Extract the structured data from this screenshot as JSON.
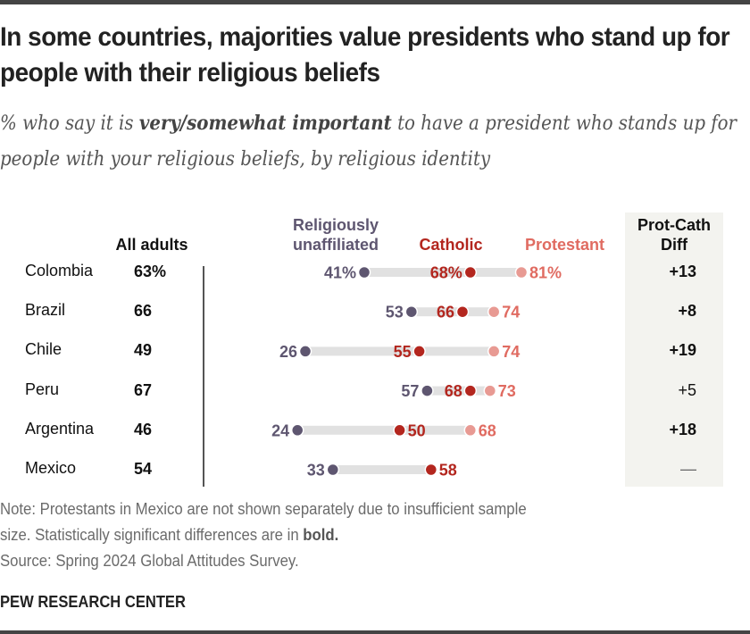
{
  "title": "In some countries, majorities value presidents who stand up for people with their religious beliefs",
  "subtitle": {
    "pre": "% who say it is ",
    "bold": "very/somewhat important",
    "post": " to have a president who stands up for people with your religious beliefs, by religious identity"
  },
  "headers": {
    "all_adults": "All adults",
    "unaffiliated": "Religiously unaffiliated",
    "catholic": "Catholic",
    "protestant": "Protestant",
    "diff": "Prot-Cath Diff"
  },
  "colors": {
    "unaffiliated": "#5e5670",
    "catholic": "#b3261e",
    "protestant": "#e89a93",
    "protestant_label": "#e06b61",
    "bar": "#e1e1e1",
    "diff_panel": "#f3f3ef"
  },
  "chart_data": {
    "type": "dot-range",
    "title": "In some countries, majorities value presidents who stand up for people with their religious beliefs",
    "unit": "%",
    "x_range": [
      0,
      100
    ],
    "categories": [
      "Colombia",
      "Brazil",
      "Chile",
      "Peru",
      "Argentina",
      "Mexico"
    ],
    "all_adults": [
      "63%",
      "66",
      "49",
      "67",
      "46",
      "54"
    ],
    "series": [
      {
        "name": "Religiously unaffiliated",
        "values": [
          41,
          53,
          26,
          57,
          24,
          33
        ]
      },
      {
        "name": "Catholic",
        "values": [
          68,
          66,
          55,
          68,
          50,
          58
        ]
      },
      {
        "name": "Protestant",
        "values": [
          81,
          74,
          74,
          73,
          68,
          null
        ]
      }
    ],
    "first_row_suffix": "%",
    "diff": [
      {
        "label": "+13",
        "significant": true
      },
      {
        "label": "+8",
        "significant": true
      },
      {
        "label": "+19",
        "significant": true
      },
      {
        "label": "+5",
        "significant": false
      },
      {
        "label": "+18",
        "significant": true
      },
      {
        "label": "—",
        "significant": false
      }
    ]
  },
  "note": {
    "line1": "Note: Protestants in Mexico are not shown separately due to insufficient sample",
    "line2_pre": "size. Statistically significant differences are in ",
    "line2_bold": "bold.",
    "source": "Source: Spring 2024 Global Attitudes Survey."
  },
  "brand": "PEW RESEARCH CENTER"
}
